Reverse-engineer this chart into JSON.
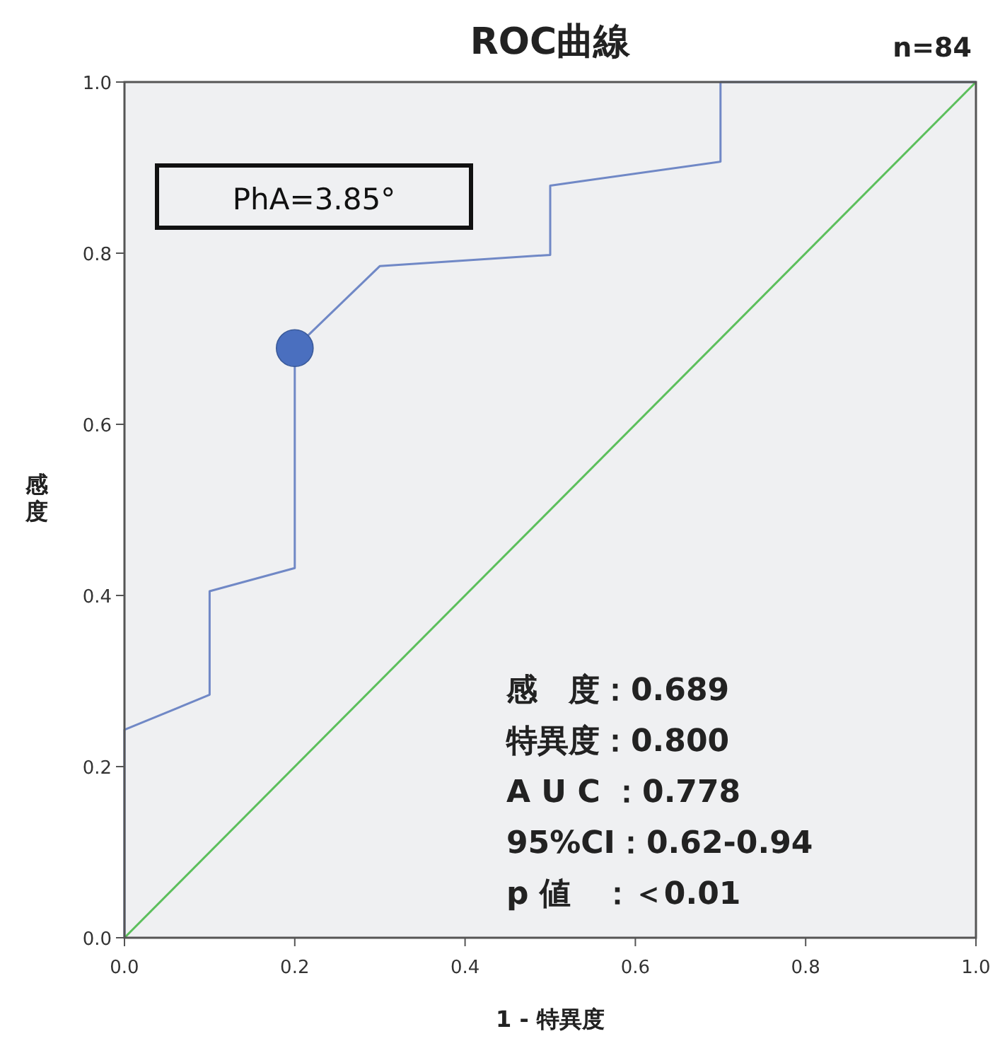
{
  "chart_data": {
    "type": "line",
    "title": "ROC曲線",
    "xlabel": "1 - 特異度",
    "ylabel": "感度",
    "annotations": [
      "n=84",
      "PhA=3.85°",
      "感　度：0.689",
      "特異度：0.800",
      "A U C ：0.778",
      "95%CI：0.62-0.94",
      "p 値　：＜0.01"
    ],
    "xlim": [
      0,
      1
    ],
    "ylim": [
      0,
      1
    ],
    "xticks": [
      {
        "value": 0,
        "label": "0.0"
      },
      {
        "value": 0.2,
        "label": "0.2"
      },
      {
        "value": 0.4,
        "label": "0.4"
      },
      {
        "value": 0.6,
        "label": "0.6"
      },
      {
        "value": 0.8,
        "label": "0.8"
      },
      {
        "value": 1,
        "label": "1.0"
      }
    ],
    "yticks": [
      {
        "value": 0,
        "label": "0.0"
      },
      {
        "value": 0.2,
        "label": "0.2"
      },
      {
        "value": 0.4,
        "label": "0.4"
      },
      {
        "value": 0.6,
        "label": "0.6"
      },
      {
        "value": 0.8,
        "label": "0.8"
      },
      {
        "value": 1,
        "label": "1.0"
      }
    ],
    "grid": false,
    "series": [
      {
        "color": "#7088c6",
        "x": [
          0,
          0,
          0.1,
          0.1,
          0.2,
          0.2,
          0.3,
          0.5,
          0.5,
          0.7,
          0.7,
          1
        ],
        "values": [
          0,
          0.243,
          0.284,
          0.405,
          0.432,
          0.689,
          0.785,
          0.798,
          0.879,
          0.907,
          1,
          1
        ]
      },
      {
        "color": "#5cbf5c",
        "x": [
          0,
          1
        ],
        "values": [
          0,
          1
        ]
      },
      {
        "type": "scatter",
        "color": "#4a6fbf",
        "marker": "circle",
        "x": [
          0.2
        ],
        "values": [
          0.689
        ]
      }
    ]
  }
}
